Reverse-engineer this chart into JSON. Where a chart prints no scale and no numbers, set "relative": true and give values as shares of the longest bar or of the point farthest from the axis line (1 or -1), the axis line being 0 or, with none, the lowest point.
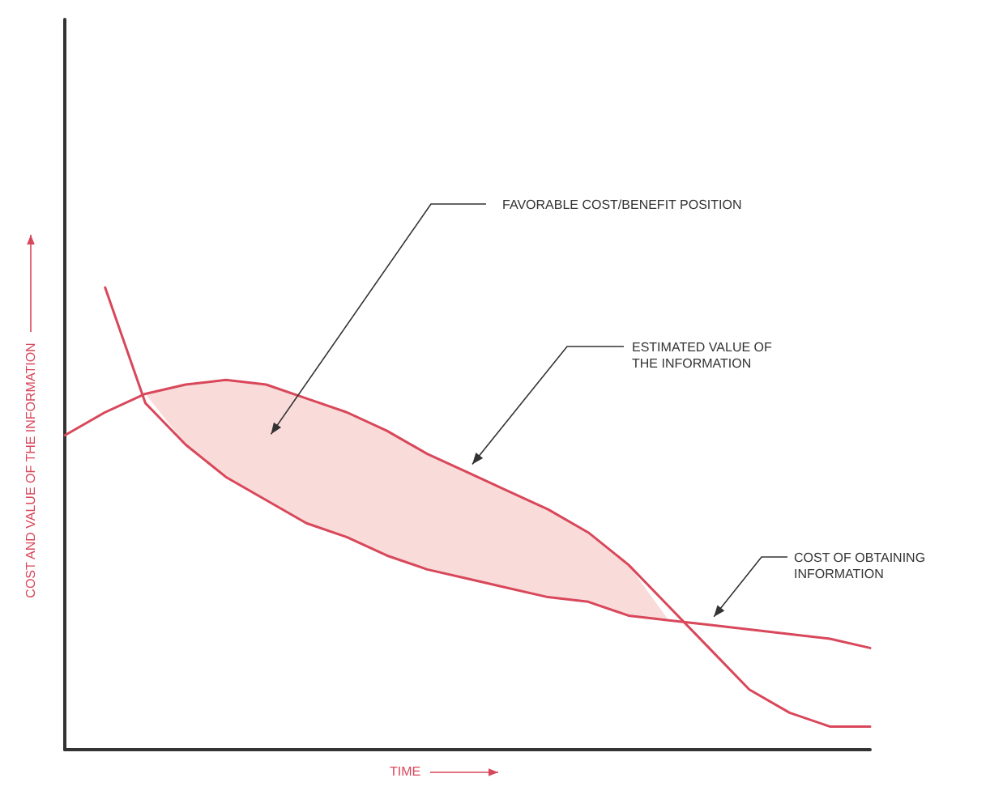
{
  "chart_data": {
    "type": "line",
    "relative": true,
    "xlabel": "TIME",
    "ylabel": "COST AND VALUE OF THE INFORMATION",
    "categories": [
      null,
      null,
      null,
      null,
      null,
      null,
      null,
      null,
      null,
      null,
      null,
      null,
      null,
      null,
      null,
      null,
      null,
      null,
      null,
      null,
      null
    ],
    "series": [
      {
        "color": "#d9475a",
        "values": [
          0.68,
          0.73,
          0.77,
          0.79,
          0.8,
          0.79,
          0.76,
          0.73,
          0.69,
          0.64,
          0.6,
          0.56,
          0.52,
          0.47,
          0.4,
          0.31,
          0.22,
          0.13,
          0.08,
          0.05,
          0.05
        ],
        "lower": [
          null,
          null,
          0.77,
          0.66,
          0.59,
          0.54,
          0.49,
          0.46,
          0.42,
          0.39,
          0.37,
          0.35,
          0.33,
          0.32,
          0.29,
          0.28,
          null,
          null,
          null,
          null,
          null
        ],
        "upper": [
          null,
          null,
          0.77,
          0.79,
          0.8,
          0.79,
          0.76,
          0.73,
          0.69,
          0.64,
          0.6,
          0.56,
          0.52,
          0.47,
          0.4,
          0.28,
          null,
          null,
          null,
          null,
          null
        ]
      },
      {
        "color": "#d9475a",
        "values": [
          null,
          1.0,
          0.75,
          0.66,
          0.59,
          0.54,
          0.49,
          0.46,
          0.42,
          0.39,
          0.37,
          0.35,
          0.33,
          0.32,
          0.29,
          0.28,
          0.27,
          0.26,
          0.25,
          0.24,
          0.22
        ]
      }
    ],
    "annotations": [
      "FAVORABLE COST/BENEFIT POSITION",
      "ESTIMATED VALUE OF THE INFORMATION",
      "COST OF OBTAINING INFORMATION"
    ],
    "grid": false
  }
}
